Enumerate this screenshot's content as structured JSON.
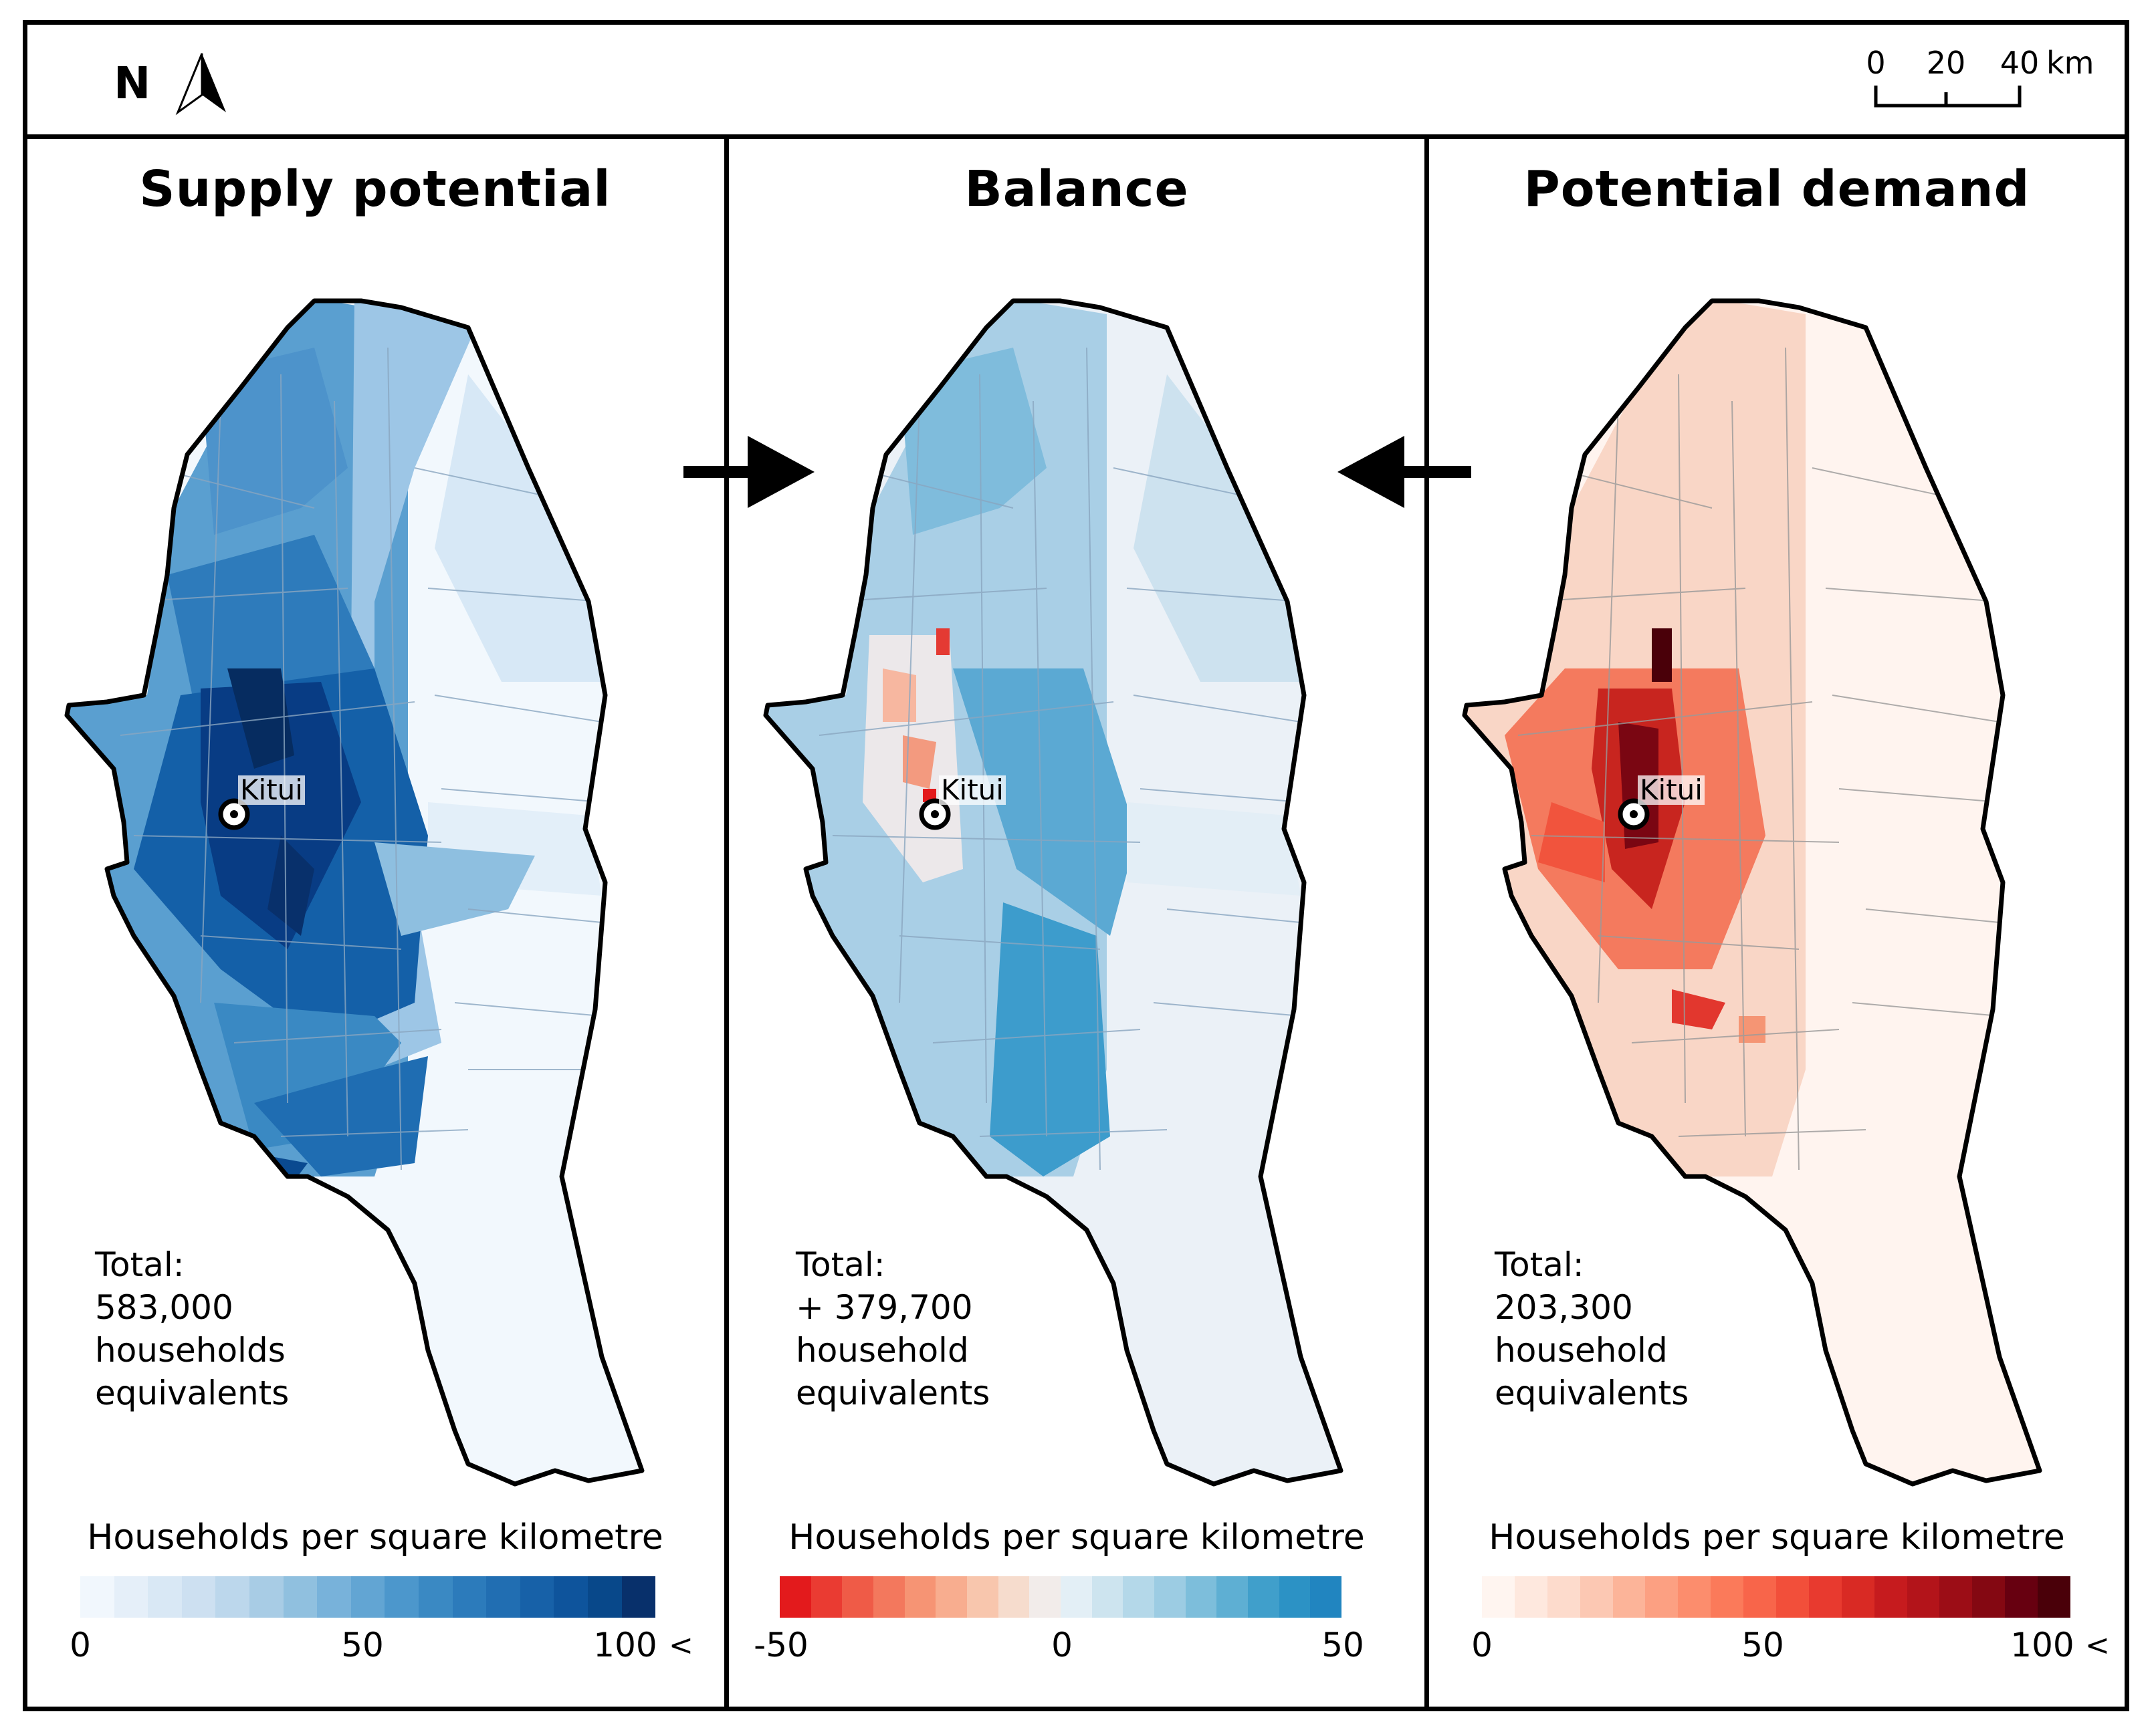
{
  "header": {
    "north_label": "N",
    "scale": {
      "ticks": [
        "0",
        "20",
        "40"
      ],
      "unit": "km"
    }
  },
  "panels": [
    {
      "title": "Supply potential",
      "total_label": "Total:",
      "total_value": "583,000",
      "total_unit_1": "households",
      "total_unit_2": "equivalents",
      "city_label": "Kitui",
      "legend_title": "Households per square kilometre",
      "legend_ticks": [
        "0",
        "50",
        "100"
      ],
      "legend_suffix": "<",
      "colors": [
        "#f1f7fd",
        "#e5eff9",
        "#d9e8f5",
        "#cde0f1",
        "#bcd7ec",
        "#a8cce5",
        "#90c0df",
        "#78b2da",
        "#62a5d3",
        "#4c97cc",
        "#3a89c3",
        "#2c7bbb",
        "#216eb2",
        "#1761a8",
        "#0e549c",
        "#08488a",
        "#08306b"
      ]
    },
    {
      "title": "Balance",
      "total_label": "Total:",
      "total_value": "+ 379,700",
      "total_unit_1": "household",
      "total_unit_2": "equivalents",
      "city_label": "Kitui",
      "legend_title": "Households per square kilometre",
      "legend_ticks": [
        "-50",
        "0",
        "50"
      ],
      "colors": [
        "#e31a1c",
        "#ea3b32",
        "#ef5b47",
        "#f3785d",
        "#f69474",
        "#f8ad8f",
        "#f8c6ad",
        "#f6dccd",
        "#f2ecea",
        "#e3eff6",
        "#cde4ef",
        "#b4d8e9",
        "#9ccce3",
        "#7dbedb",
        "#5eafd3",
        "#409fcb",
        "#2c92c5",
        "#2185c0"
      ]
    },
    {
      "title": "Potential demand",
      "total_label": "Total:",
      "total_value": "203,300",
      "total_unit_1": "household",
      "total_unit_2": "equivalents",
      "city_label": "Kitui",
      "legend_title": "Households per square kilometre",
      "legend_ticks": [
        "0",
        "50",
        "100"
      ],
      "legend_suffix": "<",
      "colors": [
        "#fff5f0",
        "#fee8de",
        "#fddbcc",
        "#fcc8b3",
        "#fcb499",
        "#fca082",
        "#fc8d6d",
        "#fb7a5a",
        "#f8654a",
        "#f24f3a",
        "#e83a2f",
        "#d92a24",
        "#c61b1e",
        "#b3141a",
        "#9c0d16",
        "#840812",
        "#670010",
        "#4a0009"
      ]
    }
  ]
}
